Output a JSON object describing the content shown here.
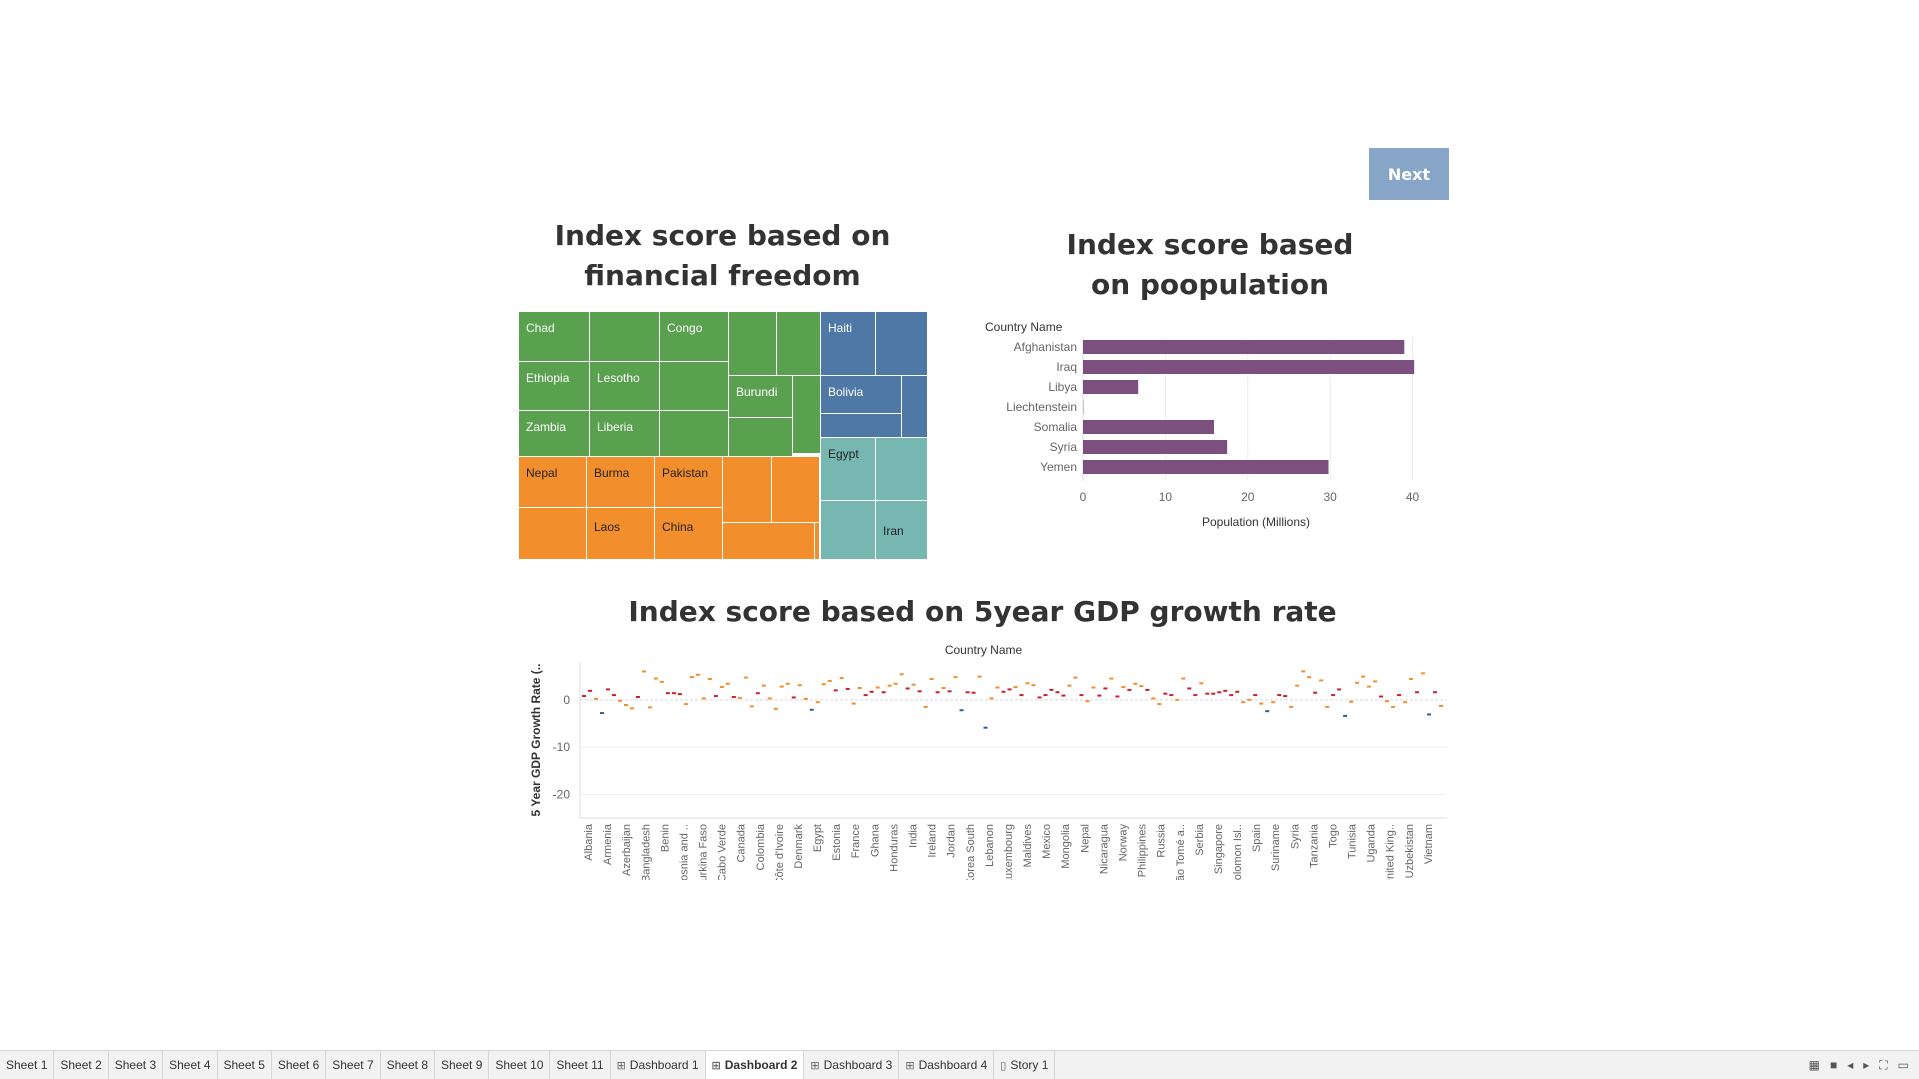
{
  "next_button": "Next",
  "titles": {
    "treemap": "Index score based on financial freedom",
    "population": "Index score based on poopulation",
    "gdp": "Index score based on 5year GDP growth rate"
  },
  "treemap": {
    "colors": {
      "green": "#59a14f",
      "blue": "#4e79a7",
      "orange": "#f28e2b",
      "teal": "#76b7b2"
    },
    "labels": {
      "chad": "Chad",
      "congo": "Congo",
      "haiti": "Haiti",
      "ethiopia": "Ethiopia",
      "lesotho": "Lesotho",
      "burundi": "Burundi",
      "bolivia": "Bolivia",
      "zambia": "Zambia",
      "liberia": "Liberia",
      "nepal": "Nepal",
      "burma": "Burma",
      "pakistan": "Pakistan",
      "egypt": "Egypt",
      "laos": "Laos",
      "china": "China",
      "iran": "Iran"
    }
  },
  "chart_data": [
    {
      "type": "bar",
      "orientation": "horizontal",
      "row_header": "Country Name",
      "categories": [
        "Afghanistan",
        "Iraq",
        "Libya",
        "Liechtenstein",
        "Somalia",
        "Syria",
        "Yemen"
      ],
      "values": [
        39,
        40.2,
        6.7,
        0.04,
        15.9,
        17.5,
        29.8
      ],
      "xlabel": "Population (Millions)",
      "xlim": [
        0,
        42
      ],
      "xticks": [
        0,
        10,
        20,
        30,
        40
      ],
      "color": "#7b4f7e"
    },
    {
      "type": "scatter",
      "header": "Country Name",
      "ylabel": "5 Year GDP Growth Rate (..",
      "ylim": [
        -25,
        8
      ],
      "yticks": [
        0,
        -10,
        -20
      ],
      "axis_labels": [
        "Albania",
        "Armenia",
        "Azerbaijan",
        "Bangladesh",
        "Benin",
        "Bosnia and ..",
        "Burkina Faso",
        "Cabo Verde",
        "Canada",
        "Colombia",
        "Côte d'Ivoire",
        "Denmark",
        "Egypt",
        "Estonia",
        "France",
        "Ghana",
        "Honduras",
        "India",
        "Ireland",
        "Jordan",
        "Korea South",
        "Lebanon",
        "Luxembourg",
        "Maldives",
        "Mexico",
        "Mongolia",
        "Nepal",
        "Nicaragua",
        "Norway",
        "Philippines",
        "Russia",
        "São Tomé a..",
        "Serbia",
        "Singapore",
        "Solomon Isl..",
        "Spain",
        "Suriname",
        "Syria",
        "Tanzania",
        "Togo",
        "Tunisia",
        "Uganda",
        "United King..",
        "Uzbekistan",
        "Vietnam"
      ],
      "values": [
        0.8,
        1.9,
        0.2,
        -2.8,
        2.2,
        1.0,
        -0.2,
        -1.1,
        -1.8,
        0.6,
        6.0,
        -1.6,
        4.5,
        3.8,
        1.4,
        1.4,
        1.2,
        -0.9,
        4.8,
        5.3,
        0.3,
        4.4,
        0.8,
        2.7,
        3.4,
        0.6,
        0.4,
        4.7,
        -1.4,
        1.4,
        3.0,
        0.3,
        -1.9,
        2.8,
        3.4,
        0.5,
        3.1,
        0.2,
        -2.1,
        -0.5,
        3.3,
        4.0,
        2.0,
        4.6,
        2.3,
        -0.8,
        2.5,
        1.0,
        1.7,
        2.6,
        1.6,
        3.0,
        3.4,
        5.4,
        2.4,
        3.2,
        1.8,
        -1.5,
        4.4,
        1.6,
        2.5,
        1.8,
        4.8,
        -2.2,
        1.6,
        1.5,
        4.9,
        -5.9,
        0.3,
        2.6,
        1.7,
        2.2,
        2.7,
        1.0,
        3.5,
        3.1,
        0.5,
        1.0,
        2.1,
        1.6,
        0.9,
        3.0,
        4.7,
        1.0,
        -0.3,
        2.6,
        0.9,
        2.4,
        4.5,
        0.7,
        2.7,
        2.1,
        3.4,
        2.9,
        2.1,
        0.3,
        -0.9,
        1.3,
        1.0,
        0.0,
        4.5,
        2.4,
        1.0,
        3.5,
        1.3,
        1.3,
        1.6,
        1.9,
        1.0,
        1.7,
        -0.5,
        0.0,
        1.0,
        -0.8,
        -2.4,
        -0.5,
        1.0,
        0.8,
        -1.5,
        3.0,
        6.0,
        4.8,
        1.5,
        4.1,
        -1.5,
        1.0,
        2.2,
        -3.4,
        -0.4,
        3.6,
        4.9,
        2.8,
        3.9,
        0.7,
        -0.3,
        -1.5,
        1.0,
        -0.5,
        4.4,
        1.6,
        5.6,
        -3.1,
        1.6,
        -1.3
      ],
      "colors": {
        "orange": "#f28e2b",
        "red": "#c9202e",
        "blue": "#2d5f9e"
      }
    }
  ],
  "tabs": [
    "Sheet 1",
    "Sheet 2",
    "Sheet 3",
    "Sheet 4",
    "Sheet 5",
    "Sheet 6",
    "Sheet 7",
    "Sheet 8",
    "Sheet 9",
    "Sheet 10",
    "Sheet 11",
    "Dashboard 1",
    "Dashboard 2",
    "Dashboard 3",
    "Dashboard 4",
    "Story 1"
  ],
  "active_tab": "Dashboard 2"
}
